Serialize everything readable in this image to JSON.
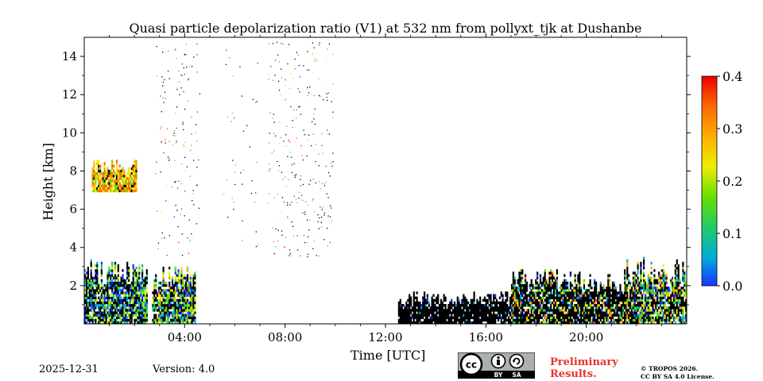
{
  "chart_data": {
    "type": "heatmap",
    "title": "Quasi particle depolarization ratio (V1) at 532 nm from pollyxt_tjk at Dushanbe",
    "xlabel": "Time [UTC]",
    "ylabel": "Height [km]",
    "xlim_hours": [
      0,
      24
    ],
    "ylim_km": [
      0,
      15
    ],
    "x_ticks": [
      {
        "value": 4,
        "label": "04:00"
      },
      {
        "value": 8,
        "label": "08:00"
      },
      {
        "value": 12,
        "label": "12:00"
      },
      {
        "value": 16,
        "label": "16:00"
      },
      {
        "value": 20,
        "label": "20:00"
      }
    ],
    "y_ticks": [
      {
        "value": 2,
        "label": "2"
      },
      {
        "value": 4,
        "label": "4"
      },
      {
        "value": 6,
        "label": "6"
      },
      {
        "value": 8,
        "label": "8"
      },
      {
        "value": 10,
        "label": "10"
      },
      {
        "value": 12,
        "label": "12"
      },
      {
        "value": 14,
        "label": "14"
      }
    ],
    "colorbar": {
      "min": 0.0,
      "max": 0.4,
      "ticks": [
        {
          "value": 0.0,
          "label": "0.0"
        },
        {
          "value": 0.1,
          "label": "0.1"
        },
        {
          "value": 0.2,
          "label": "0.2"
        },
        {
          "value": 0.3,
          "label": "0.3"
        },
        {
          "value": 0.4,
          "label": "0.4"
        }
      ],
      "colormap": [
        "#1a33ff",
        "#00aadd",
        "#22cc66",
        "#66dd00",
        "#eeee00",
        "#ffaa00",
        "#ff6600",
        "#ee0000"
      ]
    },
    "regions": [
      {
        "name": "morning-boundary-layer",
        "t0": 0.0,
        "t1": 2.5,
        "h0": 0.0,
        "h1": 3.3,
        "value_range": [
          0.0,
          0.25
        ],
        "black_fraction": 0.45
      },
      {
        "name": "elevated-layer-8km",
        "t0": 0.3,
        "t1": 2.1,
        "h0": 6.9,
        "h1": 8.6,
        "value_range": [
          0.15,
          0.35
        ],
        "black_fraction": 0.1
      },
      {
        "name": "boundary-layer-03-05",
        "t0": 2.7,
        "t1": 4.4,
        "h0": 0.0,
        "h1": 3.0,
        "value_range": [
          0.0,
          0.3
        ],
        "black_fraction": 0.35
      },
      {
        "name": "afternoon-clouds",
        "t0": 12.5,
        "t1": 17.0,
        "h0": 0.0,
        "h1": 1.6,
        "value_range": [
          0.0,
          0.1
        ],
        "black_fraction": 0.95
      },
      {
        "name": "evening-layer",
        "t0": 17.0,
        "t1": 21.6,
        "h0": 0.0,
        "h1": 2.8,
        "value_range": [
          0.0,
          0.35
        ],
        "black_fraction": 0.7
      },
      {
        "name": "night-layer",
        "t0": 21.6,
        "t1": 24.0,
        "h0": 0.0,
        "h1": 3.4,
        "value_range": [
          0.0,
          0.3
        ],
        "black_fraction": 0.45
      }
    ]
  },
  "footer": {
    "date": "2025-12-31",
    "version": "Version: 4.0",
    "preliminary_line1": "Preliminary",
    "preliminary_line2": "Results.",
    "copyright_line1": "© TROPOS 2026.",
    "copyright_line2": "CC BY SA 4.0 License.",
    "badge_cc": "cc",
    "badge_by": "BY",
    "badge_sa": "SA"
  },
  "colors": {
    "text": "#000000",
    "preliminary": "#e8342c",
    "badge_bg": "#aab0ad",
    "badge_dark": "#000000"
  }
}
